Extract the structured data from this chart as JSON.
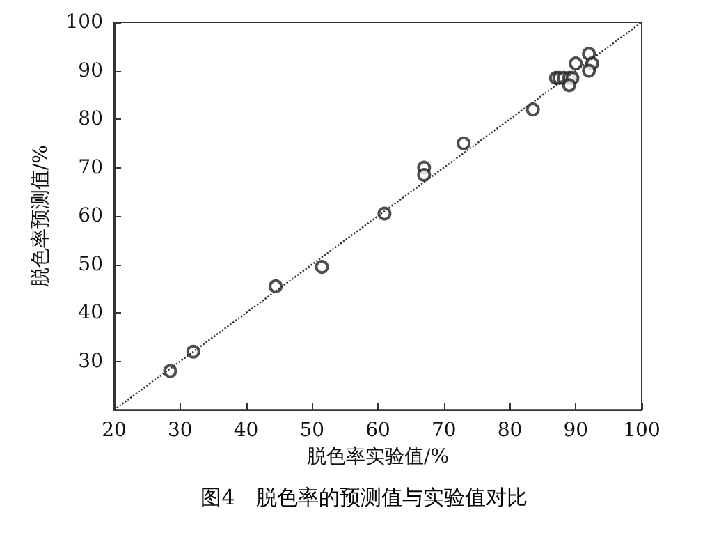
{
  "chart_data": {
    "type": "scatter",
    "xlabel": "脱色率实验值/%",
    "ylabel": "脱色率预测值/%",
    "annotations": [
      "图4　脱色率的预测值与实验值对比"
    ],
    "xlim": [
      20,
      100
    ],
    "xticks": [
      20,
      30,
      40,
      50,
      60,
      70,
      80,
      90,
      100
    ],
    "ylim": [
      20,
      100
    ],
    "yticks": [
      30,
      40,
      50,
      60,
      70,
      80,
      90,
      100
    ],
    "grid": false,
    "marker": "circle",
    "series": [
      {
        "color": "#222222",
        "x": [
          28.5,
          32,
          44.5,
          51.5,
          61,
          67,
          67,
          73,
          83.5,
          87,
          87.5,
          88.2,
          89,
          89.5,
          89,
          90,
          92,
          92.5,
          92
        ],
        "values": [
          28,
          32,
          45.5,
          49.5,
          60.5,
          70,
          68.5,
          75,
          82,
          88.5,
          88.5,
          88.5,
          88.5,
          88.5,
          87,
          91.5,
          93.5,
          91.5,
          90
        ]
      },
      {
        "type": "line",
        "color": "#333333",
        "line_style": "dotted",
        "marker": "none",
        "x": [
          20,
          100
        ],
        "values": [
          20,
          100
        ]
      }
    ]
  }
}
